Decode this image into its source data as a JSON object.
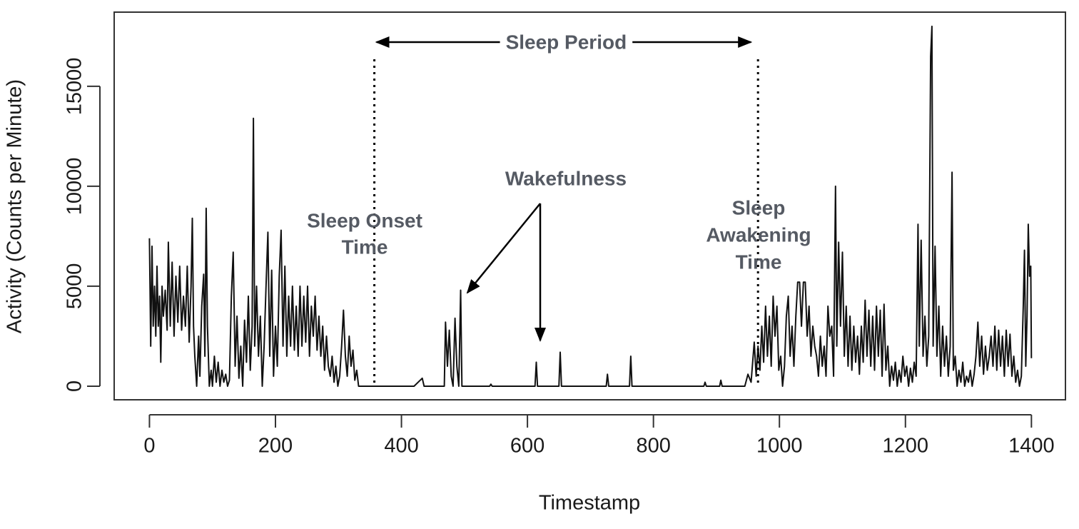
{
  "chart_data": {
    "type": "line",
    "x_label": "Timestamp",
    "y_label": "Activity (Counts per Minute)",
    "color": "#111111",
    "xlim": [
      -56,
      1454
    ],
    "ylim": [
      -680,
      18710
    ],
    "xticks": [
      0,
      200,
      400,
      600,
      800,
      1000,
      1200,
      1400
    ],
    "yticks": [
      0,
      5000,
      10000,
      15000
    ],
    "sleep_onset": 357,
    "sleep_awakening": 966,
    "annotations": {
      "period": "Sleep Period",
      "wake": "Wakefulness",
      "onset": [
        "Sleep Onset",
        "Time"
      ],
      "awakening": [
        "Sleep",
        "Awakening",
        "Time"
      ]
    },
    "x": [
      0,
      2,
      4,
      6,
      8,
      10,
      12,
      14,
      16,
      18,
      20,
      22,
      25,
      28,
      30,
      33,
      36,
      39,
      42,
      45,
      48,
      51,
      54,
      57,
      60,
      63,
      66,
      68,
      70,
      72,
      75,
      78,
      80,
      83,
      86,
      88,
      90,
      92,
      95,
      98,
      100,
      103,
      106,
      109,
      112,
      115,
      118,
      121,
      124,
      127,
      130,
      133,
      136,
      139,
      142,
      145,
      148,
      151,
      154,
      157,
      160,
      163,
      165,
      167,
      170,
      173,
      176,
      179,
      182,
      185,
      188,
      191,
      194,
      197,
      200,
      203,
      206,
      209,
      212,
      215,
      218,
      221,
      224,
      227,
      230,
      233,
      236,
      239,
      242,
      245,
      248,
      251,
      254,
      257,
      260,
      263,
      266,
      269,
      272,
      275,
      278,
      281,
      284,
      287,
      290,
      293,
      296,
      299,
      302,
      305,
      308,
      311,
      314,
      317,
      320,
      323,
      326,
      329,
      332,
      336,
      340,
      360,
      420,
      433,
      436,
      468,
      470,
      473,
      476,
      479,
      482,
      485,
      488,
      491,
      494,
      496,
      540,
      542,
      544,
      612,
      614,
      616,
      650,
      652,
      654,
      725,
      727,
      729,
      762,
      764,
      766,
      880,
      882,
      884,
      905,
      907,
      909,
      945,
      950,
      955,
      960,
      963,
      966,
      969,
      972,
      975,
      978,
      981,
      984,
      987,
      990,
      993,
      996,
      999,
      1002,
      1005,
      1008,
      1011,
      1014,
      1017,
      1020,
      1023,
      1026,
      1029,
      1032,
      1035,
      1038,
      1041,
      1044,
      1047,
      1050,
      1053,
      1056,
      1059,
      1062,
      1065,
      1068,
      1071,
      1074,
      1077,
      1080,
      1083,
      1086,
      1089,
      1091,
      1094,
      1097,
      1100,
      1103,
      1106,
      1109,
      1112,
      1115,
      1118,
      1121,
      1124,
      1127,
      1130,
      1133,
      1136,
      1139,
      1142,
      1145,
      1148,
      1151,
      1154,
      1157,
      1160,
      1163,
      1166,
      1169,
      1172,
      1175,
      1178,
      1181,
      1184,
      1187,
      1190,
      1193,
      1196,
      1199,
      1202,
      1205,
      1208,
      1211,
      1214,
      1217,
      1220,
      1222,
      1225,
      1228,
      1231,
      1234,
      1237,
      1240,
      1242,
      1244,
      1247,
      1250,
      1253,
      1256,
      1259,
      1262,
      1265,
      1268,
      1271,
      1274,
      1276,
      1279,
      1282,
      1285,
      1288,
      1291,
      1294,
      1297,
      1300,
      1303,
      1306,
      1309,
      1312,
      1315,
      1318,
      1321,
      1324,
      1327,
      1330,
      1333,
      1336,
      1339,
      1342,
      1345,
      1348,
      1351,
      1354,
      1357,
      1360,
      1363,
      1366,
      1369,
      1372,
      1375,
      1378,
      1381,
      1384,
      1387,
      1389,
      1391,
      1393,
      1395,
      1397,
      1399,
      1400
    ],
    "values": [
      7400,
      2000,
      7000,
      3000,
      5000,
      2500,
      6000,
      3000,
      4500,
      1200,
      5000,
      3500,
      4800,
      2800,
      7200,
      3000,
      6200,
      2500,
      5500,
      3200,
      6000,
      2800,
      4500,
      3000,
      6000,
      2200,
      5000,
      8400,
      3000,
      1500,
      0,
      2500,
      500,
      4000,
      5600,
      1500,
      8900,
      3000,
      0,
      800,
      0,
      1500,
      200,
      1200,
      0,
      800,
      200,
      600,
      0,
      300,
      4500,
      6700,
      1000,
      3500,
      400,
      2000,
      0,
      3300,
      1200,
      4500,
      800,
      3000,
      13400,
      2000,
      5000,
      1500,
      3500,
      0,
      2000,
      5000,
      7700,
      1500,
      5800,
      500,
      3000,
      1000,
      5500,
      7800,
      2000,
      6000,
      1500,
      4500,
      2000,
      5000,
      1800,
      4000,
      1500,
      5000,
      2000,
      4500,
      2200,
      5000,
      1500,
      4000,
      2500,
      4500,
      1800,
      3500,
      1500,
      3000,
      800,
      2500,
      1000,
      500,
      1500,
      200,
      1000,
      0,
      500,
      2000,
      3800,
      1500,
      500,
      2500,
      1000,
      1800,
      300,
      800,
      0,
      0,
      0,
      0,
      0,
      400,
      0,
      0,
      3200,
      1000,
      2800,
      500,
      0,
      3400,
      1000,
      0,
      4800,
      0,
      0,
      100,
      0,
      0,
      1200,
      0,
      0,
      1700,
      0,
      0,
      600,
      0,
      0,
      1500,
      0,
      0,
      200,
      0,
      0,
      300,
      0,
      0,
      600,
      200,
      2200,
      500,
      2000,
      800,
      3000,
      1200,
      4000,
      1500,
      3500,
      1000,
      4500,
      2500,
      4000,
      800,
      1500,
      0,
      1000,
      3500,
      4500,
      1500,
      3000,
      1000,
      3500,
      5200,
      5200,
      3000,
      5200,
      5200,
      2500,
      4000,
      1500,
      3000,
      2000,
      1500,
      500,
      2500,
      1000,
      2000,
      500,
      4000,
      2500,
      3000,
      500,
      10000,
      2000,
      7200,
      3000,
      6700,
      1500,
      4000,
      1000,
      3500,
      800,
      3000,
      1200,
      2500,
      600,
      3000,
      1200,
      4300,
      1500,
      3800,
      1000,
      3500,
      800,
      4000,
      1500,
      3800,
      500,
      4100,
      800,
      2000,
      0,
      1000,
      300,
      1200,
      0,
      800,
      200,
      1500,
      500,
      1000,
      0,
      900,
      200,
      1200,
      500,
      8100,
      2000,
      7300,
      1500,
      3500,
      1000,
      2500,
      16500,
      18000,
      2000,
      7000,
      1500,
      4000,
      500,
      3000,
      1000,
      2500,
      500,
      2000,
      10700,
      800,
      1500,
      0,
      800,
      200,
      1200,
      0,
      500,
      200,
      800,
      0,
      600,
      1500,
      3200,
      1000,
      2500,
      600,
      2000,
      800,
      1500,
      2500,
      1000,
      3000,
      800,
      2800,
      1000,
      2500,
      500,
      2800,
      1000,
      2600,
      500,
      1500,
      200,
      800,
      0,
      500,
      4000,
      6800,
      1000,
      3500,
      8100,
      5500,
      6000,
      1400
    ]
  }
}
